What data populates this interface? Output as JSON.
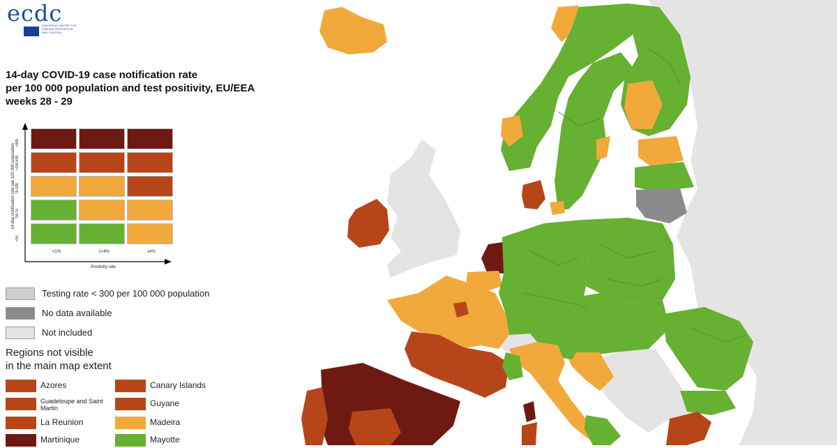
{
  "logo": {
    "text": "ecdc",
    "subtitle_lines": [
      "EUROPEAN CENTRE FOR",
      "DISEASE PREVENTION",
      "AND CONTROL"
    ]
  },
  "title_lines": [
    "14-day COVID-19 case notification rate",
    "per 100 000 population and test positivity, EU/EEA",
    "weeks 28 - 29"
  ],
  "colors": {
    "dark_red": "#6e1a12",
    "red": "#b6461a",
    "orange": "#f0a93a",
    "green": "#66b032",
    "grey_testing": "#cfcfcf",
    "grey_nodata": "#8a8a8a",
    "grey_notincluded": "#e4e4e4",
    "sea": "#ffffff"
  },
  "matrix": {
    "y_axis_label": "14-day notification rate per 100 000 population",
    "x_axis_label": "Positivity rate",
    "x_ticks": [
      "<1%",
      "1<4%",
      "≥4%"
    ],
    "y_ticks": [
      "≥500",
      ">200-499",
      "75-199",
      "50-74",
      "<50"
    ],
    "cells": [
      [
        "dark_red",
        "dark_red",
        "dark_red"
      ],
      [
        "red",
        "red",
        "red"
      ],
      [
        "orange",
        "orange",
        "red"
      ],
      [
        "green",
        "orange",
        "orange"
      ],
      [
        "green",
        "green",
        "orange"
      ]
    ]
  },
  "legend": [
    {
      "label": "Testing rate < 300 per 100 000 population",
      "color": "#cfcfcf"
    },
    {
      "label": "No data available",
      "color": "#8a8a8a"
    },
    {
      "label": "Not included",
      "color": "#e4e4e4"
    }
  ],
  "regions_heading_lines": [
    "Regions not visible",
    "in the main map extent"
  ],
  "regions": [
    {
      "label": "Azores",
      "color": "#b6461a"
    },
    {
      "label": "Canary Islands",
      "color": "#b6461a"
    },
    {
      "label": "Guadeloupe and Saint Martin",
      "color": "#b6461a"
    },
    {
      "label": "Guyane",
      "color": "#b6461a"
    },
    {
      "label": "La Reunion",
      "color": "#b6461a"
    },
    {
      "label": "Madeira",
      "color": "#f0a93a"
    },
    {
      "label": "Martinique",
      "color": "#6e1a12"
    },
    {
      "label": "Mayotte",
      "color": "#66b032"
    }
  ]
}
